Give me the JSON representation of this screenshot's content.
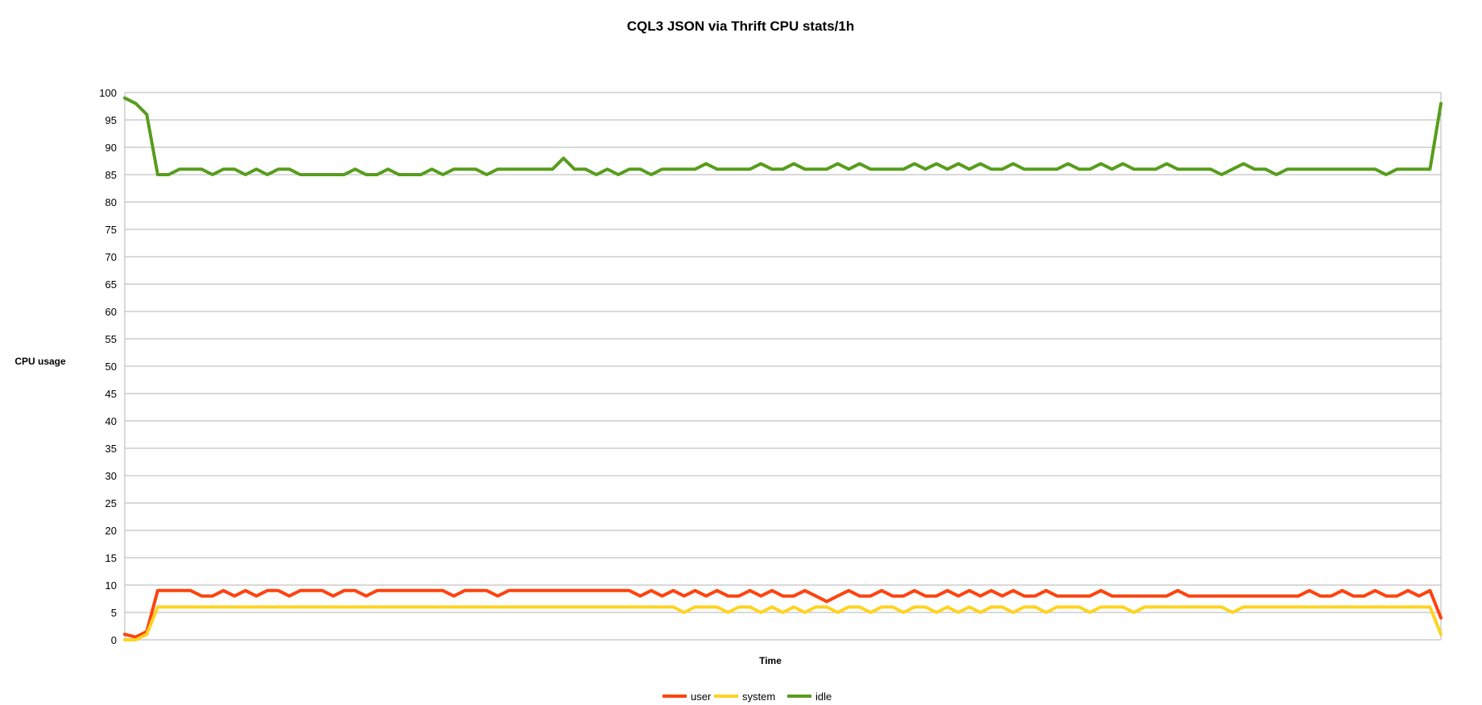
{
  "chart_data": {
    "type": "line",
    "title": "CQL3 JSON via Thrift CPU stats/1h",
    "xlabel": "Time",
    "ylabel": "CPU usage",
    "ylim": [
      0,
      100
    ],
    "yticks": [
      0,
      5,
      10,
      15,
      20,
      25,
      30,
      35,
      40,
      45,
      50,
      55,
      60,
      65,
      70,
      75,
      80,
      85,
      90,
      95,
      100
    ],
    "xticks": [],
    "grid": true,
    "legend_position": "bottom",
    "x": [
      0,
      1,
      2,
      3,
      4,
      5,
      6,
      7,
      8,
      9,
      10,
      11,
      12,
      13,
      14,
      15,
      16,
      17,
      18,
      19,
      20,
      21,
      22,
      23,
      24,
      25,
      26,
      27,
      28,
      29,
      30,
      31,
      32,
      33,
      34,
      35,
      36,
      37,
      38,
      39,
      40,
      41,
      42,
      43,
      44,
      45,
      46,
      47,
      48,
      49,
      50,
      51,
      52,
      53,
      54,
      55,
      56,
      57,
      58,
      59,
      60,
      61,
      62,
      63,
      64,
      65,
      66,
      67,
      68,
      69,
      70,
      71,
      72,
      73,
      74,
      75,
      76,
      77,
      78,
      79,
      80,
      81,
      82,
      83,
      84,
      85,
      86,
      87,
      88,
      89,
      90,
      91,
      92,
      93,
      94,
      95,
      96,
      97,
      98,
      99,
      100,
      101,
      102,
      103,
      104,
      105,
      106,
      107,
      108,
      109,
      110,
      111,
      112,
      113,
      114,
      115,
      116,
      117,
      118,
      119,
      120
    ],
    "series": [
      {
        "name": "user",
        "color": "#ff420e",
        "values": [
          1,
          0.5,
          1.5,
          9,
          9,
          9,
          9,
          8,
          8,
          9,
          8,
          9,
          8,
          9,
          9,
          8,
          9,
          9,
          9,
          8,
          9,
          9,
          8,
          9,
          9,
          9,
          9,
          9,
          9,
          9,
          8,
          9,
          9,
          9,
          8,
          9,
          9,
          9,
          9,
          9,
          9,
          9,
          9,
          9,
          9,
          9,
          9,
          8,
          9,
          8,
          9,
          8,
          9,
          8,
          9,
          8,
          8,
          9,
          8,
          9,
          8,
          8,
          9,
          8,
          7,
          8,
          9,
          8,
          8,
          9,
          8,
          8,
          9,
          8,
          8,
          9,
          8,
          9,
          8,
          9,
          8,
          9,
          8,
          8,
          9,
          8,
          8,
          8,
          8,
          9,
          8,
          8,
          8,
          8,
          8,
          8,
          9,
          8,
          8,
          8,
          8,
          8,
          8,
          8,
          8,
          8,
          8,
          8,
          9,
          8,
          8,
          9,
          8,
          8,
          9,
          8,
          8,
          9,
          8,
          9,
          4
        ]
      },
      {
        "name": "system",
        "color": "#ffd320",
        "values": [
          0,
          0,
          1,
          6,
          6,
          6,
          6,
          6,
          6,
          6,
          6,
          6,
          6,
          6,
          6,
          6,
          6,
          6,
          6,
          6,
          6,
          6,
          6,
          6,
          6,
          6,
          6,
          6,
          6,
          6,
          6,
          6,
          6,
          6,
          6,
          6,
          6,
          6,
          6,
          6,
          6,
          6,
          6,
          6,
          6,
          6,
          6,
          6,
          6,
          6,
          6,
          5,
          6,
          6,
          6,
          5,
          6,
          6,
          5,
          6,
          5,
          6,
          5,
          6,
          6,
          5,
          6,
          6,
          5,
          6,
          6,
          5,
          6,
          6,
          5,
          6,
          5,
          6,
          5,
          6,
          6,
          5,
          6,
          6,
          5,
          6,
          6,
          6,
          5,
          6,
          6,
          6,
          5,
          6,
          6,
          6,
          6,
          6,
          6,
          6,
          6,
          5,
          6,
          6,
          6,
          6,
          6,
          6,
          6,
          6,
          6,
          6,
          6,
          6,
          6,
          6,
          6,
          6,
          6,
          6,
          1
        ]
      },
      {
        "name": "idle",
        "color": "#579d1c",
        "values": [
          99,
          98,
          96,
          85,
          85,
          86,
          86,
          86,
          85,
          86,
          86,
          85,
          86,
          85,
          86,
          86,
          85,
          85,
          85,
          85,
          85,
          86,
          85,
          85,
          86,
          85,
          85,
          85,
          86,
          85,
          86,
          86,
          86,
          85,
          86,
          86,
          86,
          86,
          86,
          86,
          88,
          86,
          86,
          85,
          86,
          85,
          86,
          86,
          85,
          86,
          86,
          86,
          86,
          87,
          86,
          86,
          86,
          86,
          87,
          86,
          86,
          87,
          86,
          86,
          86,
          87,
          86,
          87,
          86,
          86,
          86,
          86,
          87,
          86,
          87,
          86,
          87,
          86,
          87,
          86,
          86,
          87,
          86,
          86,
          86,
          86,
          87,
          86,
          86,
          87,
          86,
          87,
          86,
          86,
          86,
          87,
          86,
          86,
          86,
          86,
          85,
          86,
          87,
          86,
          86,
          85,
          86,
          86,
          86,
          86,
          86,
          86,
          86,
          86,
          86,
          85,
          86,
          86,
          86,
          86,
          98
        ]
      }
    ]
  }
}
